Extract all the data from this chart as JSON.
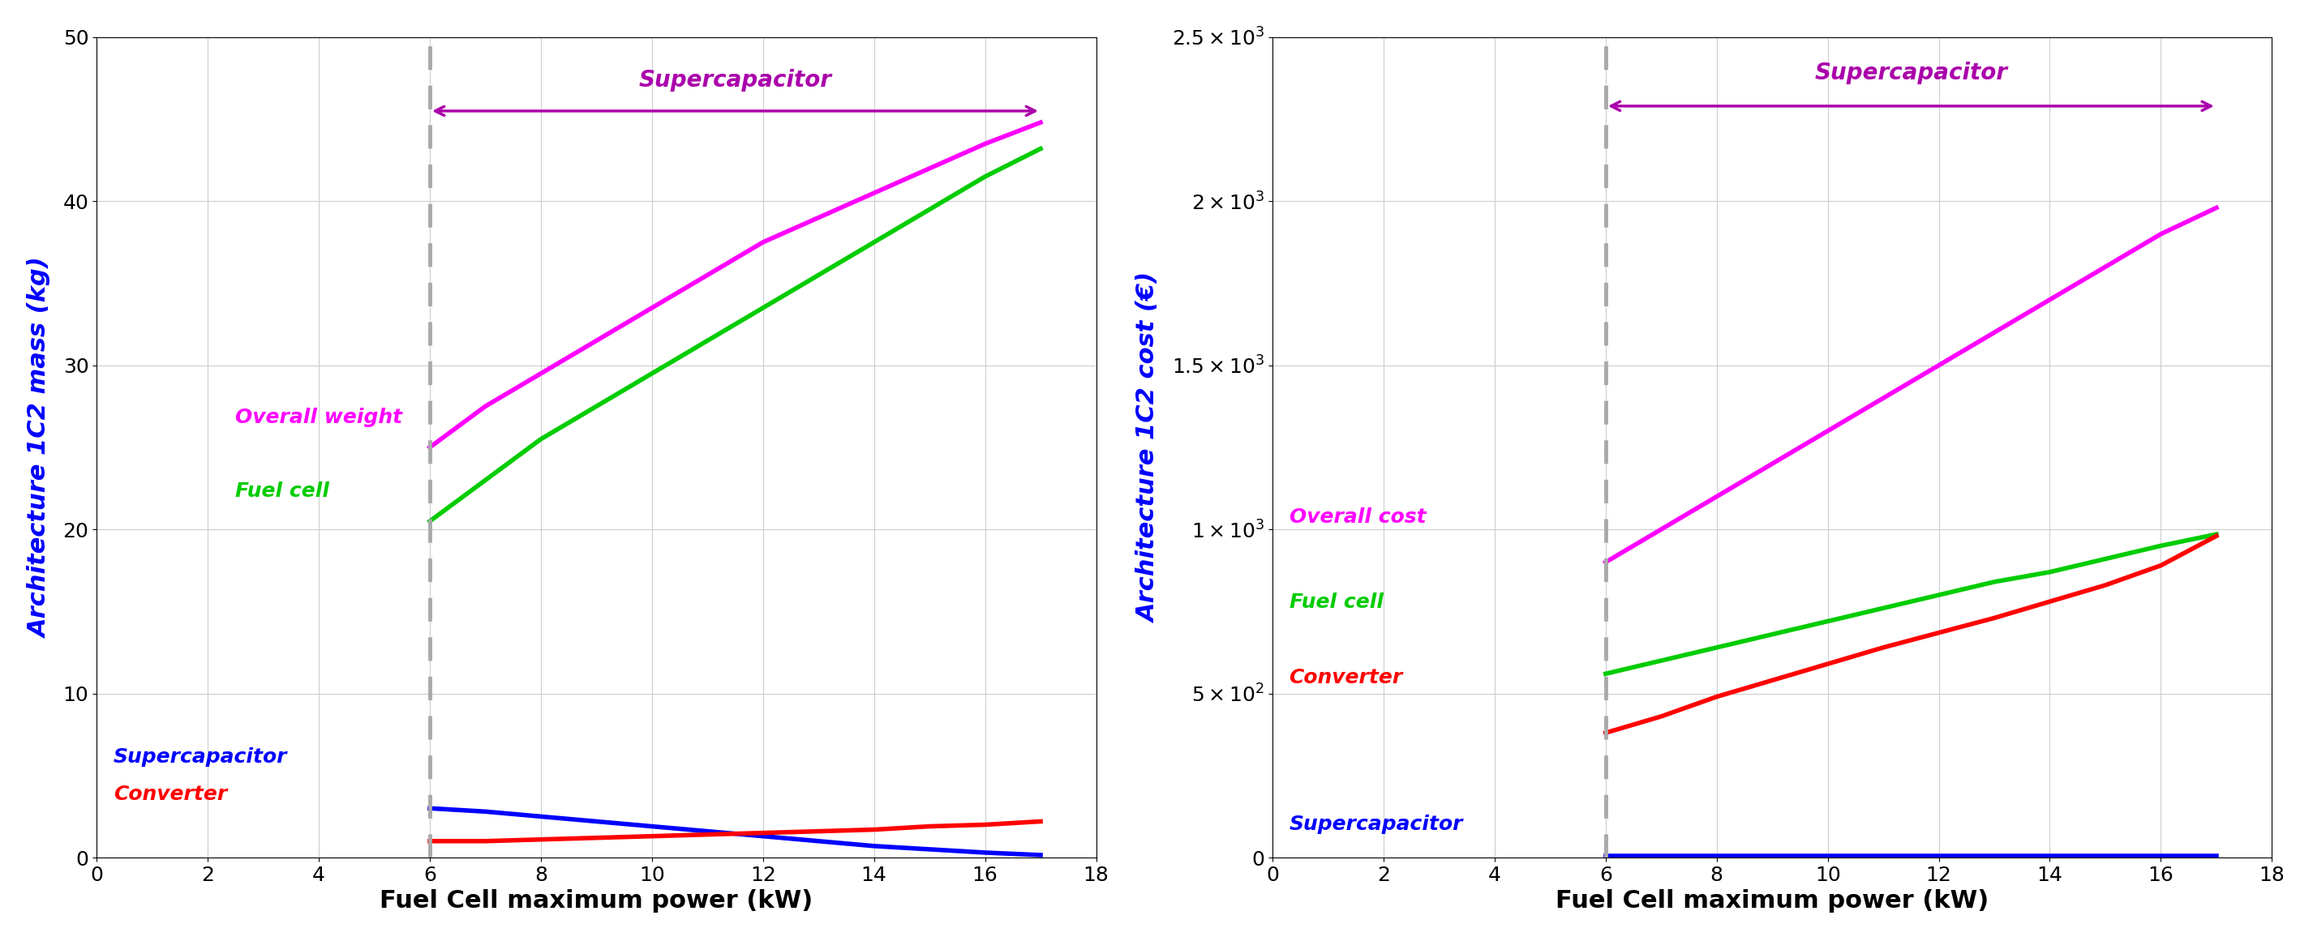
{
  "x": [
    6,
    7,
    8,
    9,
    10,
    11,
    12,
    13,
    14,
    15,
    16,
    17
  ],
  "overall_weight": [
    25.0,
    27.5,
    29.5,
    31.5,
    33.5,
    35.5,
    37.5,
    39.0,
    40.5,
    42.0,
    43.5,
    44.8
  ],
  "fuel_cell_mass": [
    20.5,
    23.0,
    25.5,
    27.5,
    29.5,
    31.5,
    33.5,
    35.5,
    37.5,
    39.5,
    41.5,
    43.2
  ],
  "supercap_mass": [
    3.0,
    2.8,
    2.5,
    2.2,
    1.9,
    1.6,
    1.3,
    1.0,
    0.7,
    0.5,
    0.3,
    0.15
  ],
  "converter_mass": [
    1.0,
    1.0,
    1.1,
    1.2,
    1.3,
    1.4,
    1.5,
    1.6,
    1.7,
    1.9,
    2.0,
    2.2
  ],
  "overall_cost": [
    900,
    1000,
    1100,
    1200,
    1300,
    1400,
    1500,
    1600,
    1700,
    1800,
    1900,
    1980
  ],
  "fuel_cell_cost": [
    560,
    600,
    640,
    680,
    720,
    760,
    800,
    840,
    870,
    910,
    950,
    985
  ],
  "converter_cost": [
    380,
    430,
    490,
    540,
    590,
    640,
    685,
    730,
    780,
    830,
    890,
    980
  ],
  "supercap_cost": [
    5,
    5,
    5,
    5,
    5,
    5,
    5,
    5,
    5,
    5,
    5,
    5
  ],
  "vline_x": 6,
  "left_ylabel": "Architecture 1C2 mass (kg)",
  "right_ylabel": "Architecture 1C2 cost (€)",
  "xlabel": "Fuel Cell maximum power (kW)",
  "left_ylim": [
    0,
    50
  ],
  "right_ylim": [
    0,
    2500
  ],
  "xlim": [
    0,
    17
  ],
  "arrow_label": "Supercapacitor",
  "arrow_color": "#AA00AA",
  "magenta": "#FF00FF",
  "green": "#00CC00",
  "blue": "#0000FF",
  "red": "#FF0000",
  "gray_dash": "#AAAAAA",
  "label_overall_weight": "Overall weight",
  "label_fuel_cell": "Fuel cell",
  "label_supercap": "Supercapacitor",
  "label_converter": "Converter",
  "label_overall_cost": "Overall cost"
}
